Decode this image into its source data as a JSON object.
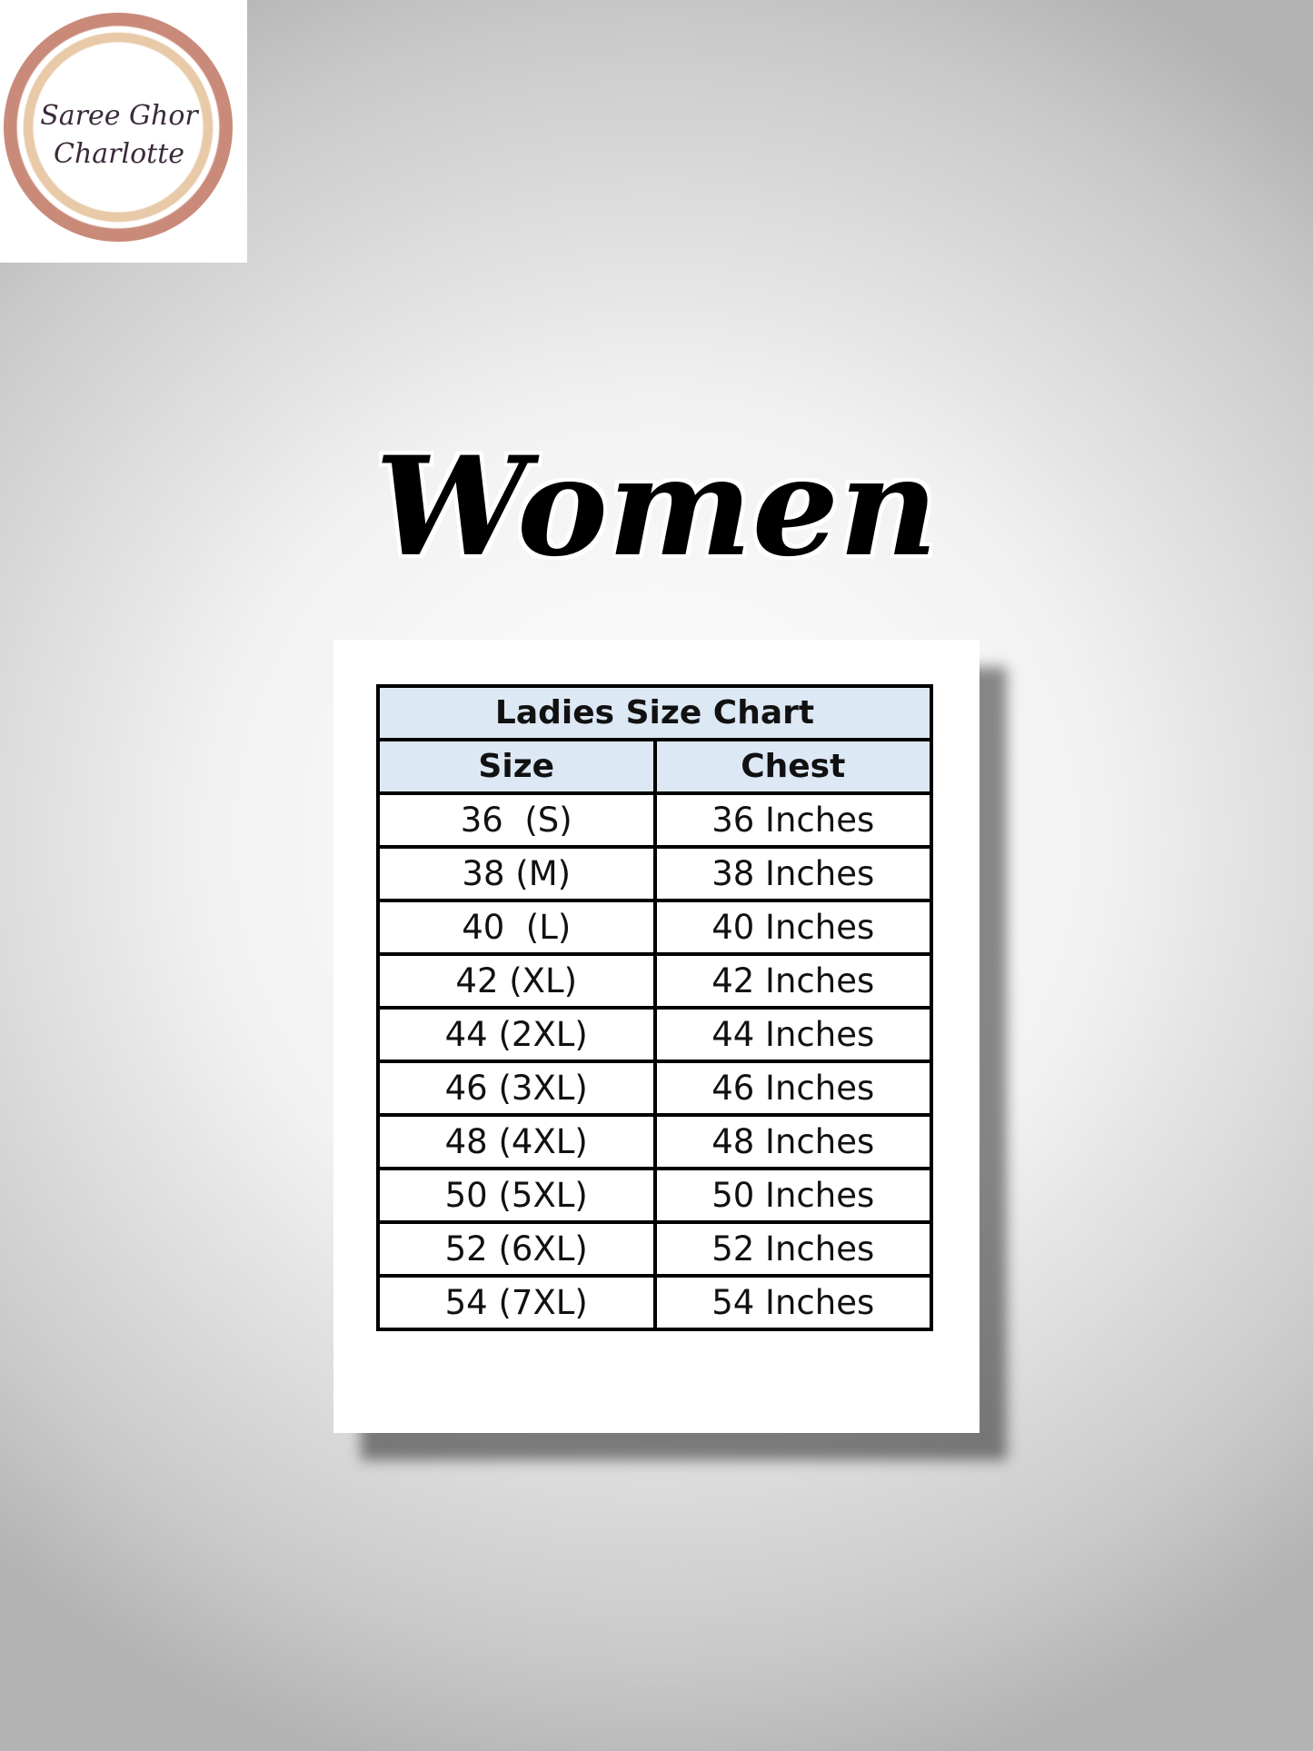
{
  "logo": {
    "line1": "Saree Ghor",
    "line2": "Charlotte"
  },
  "heading": "Women",
  "table": {
    "title": "Ladies Size Chart",
    "headers": [
      "Size",
      "Chest"
    ],
    "rows": [
      [
        "36  (S)",
        "36 Inches"
      ],
      [
        "38 (M)",
        "38 Inches"
      ],
      [
        "40  (L)",
        "40 Inches"
      ],
      [
        "42 (XL)",
        "42 Inches"
      ],
      [
        "44 (2XL)",
        "44 Inches"
      ],
      [
        "46 (3XL)",
        "46 Inches"
      ],
      [
        "48 (4XL)",
        "48 Inches"
      ],
      [
        "50 (5XL)",
        "50 Inches"
      ],
      [
        "52 (6XL)",
        "52 Inches"
      ],
      [
        "54 (7XL)",
        "54 Inches"
      ]
    ]
  }
}
